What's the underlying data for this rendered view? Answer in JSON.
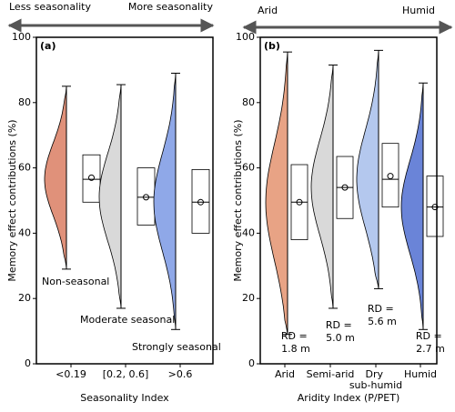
{
  "chart_data": [
    {
      "type": "violin",
      "panel_label": "(a)",
      "ylabel": "Memory effect contributions (%)",
      "xlabel": "Seasonality Index",
      "arrow_labels": [
        "Less seasonality",
        "More seasonality"
      ],
      "categories": [
        "<0.19",
        "[0.2, 0.6]",
        ">0.6"
      ],
      "colors": [
        "#e0917a",
        "#d9d9d9",
        "#8fa8e8"
      ],
      "min": [
        29,
        17,
        10.5
      ],
      "q1": [
        49.5,
        42.5,
        40
      ],
      "median": [
        56.5,
        51,
        49.5
      ],
      "q3": [
        64,
        60,
        59.5
      ],
      "max": [
        85,
        85.5,
        89
      ],
      "mean": [
        57,
        51,
        49.5
      ],
      "annotations": [
        "Non-seasonal",
        "Moderate seasonal",
        "Strongly seasonal"
      ],
      "ylim": [
        0,
        100
      ],
      "yticks": [
        0,
        20,
        40,
        60,
        80,
        100
      ]
    },
    {
      "type": "violin",
      "panel_label": "(b)",
      "ylabel": "Memory effect contributions (%)",
      "xlabel": "Aridity Index (P/PET)",
      "arrow_labels": [
        "Arid",
        "Humid"
      ],
      "categories": [
        "Arid",
        "Semi-arid",
        "Dry sub-humid",
        "Humid"
      ],
      "colors": [
        "#e8a385",
        "#d9d9d9",
        "#b4c8ee",
        "#6a84d8"
      ],
      "min": [
        9,
        17,
        23,
        10.5
      ],
      "q1": [
        38,
        44.5,
        48,
        39
      ],
      "median": [
        49.5,
        54,
        56.5,
        48
      ],
      "q3": [
        61,
        63.5,
        67.5,
        57.5
      ],
      "max": [
        95.5,
        91.5,
        96,
        86
      ],
      "mean": [
        49.5,
        54,
        57.5,
        48
      ],
      "annotations": [
        "RD = 1.8 m",
        "RD = 5.0 m",
        "RD = 5.6 m",
        "RD = 2.7 m"
      ],
      "ylim": [
        0,
        100
      ],
      "yticks": [
        0,
        20,
        40,
        60,
        80,
        100
      ]
    }
  ]
}
